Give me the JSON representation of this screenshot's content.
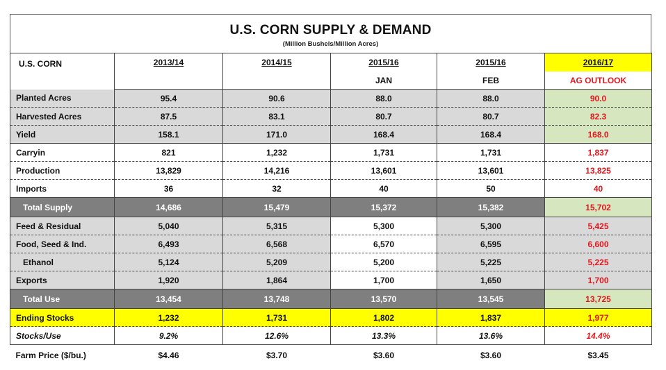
{
  "title": "U.S. CORN SUPPLY & DEMAND",
  "subtitle": "(Million Bushels/Million Acres)",
  "header": {
    "label": "U.S. CORN",
    "columns": [
      {
        "year": "2013/14",
        "sub": ""
      },
      {
        "year": "2014/15",
        "sub": ""
      },
      {
        "year": "2015/16",
        "sub": "JAN"
      },
      {
        "year": "2015/16",
        "sub": "FEB"
      },
      {
        "year": "2016/17",
        "sub": "AG OUTLOOK"
      }
    ]
  },
  "colors": {
    "accent_red": "#e3161e",
    "highlight_yellow": "#ffff00",
    "green": "#d6e7bf",
    "gray": "#d9d9d9",
    "dark_gray": "#7f7f7f"
  },
  "rows": [
    {
      "label": "Planted Acres",
      "values": [
        "95.4",
        "90.6",
        "88.0",
        "88.0",
        "90.0"
      ]
    },
    {
      "label": "Harvested Acres",
      "values": [
        "87.5",
        "83.1",
        "80.7",
        "80.7",
        "82.3"
      ]
    },
    {
      "label": "Yield",
      "values": [
        "158.1",
        "171.0",
        "168.4",
        "168.4",
        "168.0"
      ]
    },
    {
      "label": "Carryin",
      "values": [
        "821",
        "1,232",
        "1,731",
        "1,731",
        "1,837"
      ]
    },
    {
      "label": "Production",
      "values": [
        "13,829",
        "14,216",
        "13,601",
        "13,601",
        "13,825"
      ]
    },
    {
      "label": "Imports",
      "values": [
        "36",
        "32",
        "40",
        "50",
        "40"
      ]
    },
    {
      "label": "Total Supply",
      "values": [
        "14,686",
        "15,479",
        "15,372",
        "15,382",
        "15,702"
      ]
    },
    {
      "label": "Feed & Residual",
      "values": [
        "5,040",
        "5,315",
        "5,300",
        "5,300",
        "5,425"
      ]
    },
    {
      "label": "Food, Seed & Ind.",
      "values": [
        "6,493",
        "6,568",
        "6,570",
        "6,595",
        "6,600"
      ]
    },
    {
      "label": "Ethanol",
      "values": [
        "5,124",
        "5,209",
        "5,200",
        "5,225",
        "5,225"
      ]
    },
    {
      "label": "Exports",
      "values": [
        "1,920",
        "1,864",
        "1,700",
        "1,650",
        "1,700"
      ]
    },
    {
      "label": "Total Use",
      "values": [
        "13,454",
        "13,748",
        "13,570",
        "13,545",
        "13,725"
      ]
    },
    {
      "label": "Ending Stocks",
      "values": [
        "1,232",
        "1,731",
        "1,802",
        "1,837",
        "1,977"
      ]
    },
    {
      "label": "Stocks/Use",
      "values": [
        "9.2%",
        "12.6%",
        "13.3%",
        "13.6%",
        "14.4%"
      ]
    },
    {
      "label": "Farm Price ($/bu.)",
      "values": [
        "$4.46",
        "$3.70",
        "$3.60",
        "$3.60",
        "$3.45"
      ]
    }
  ]
}
